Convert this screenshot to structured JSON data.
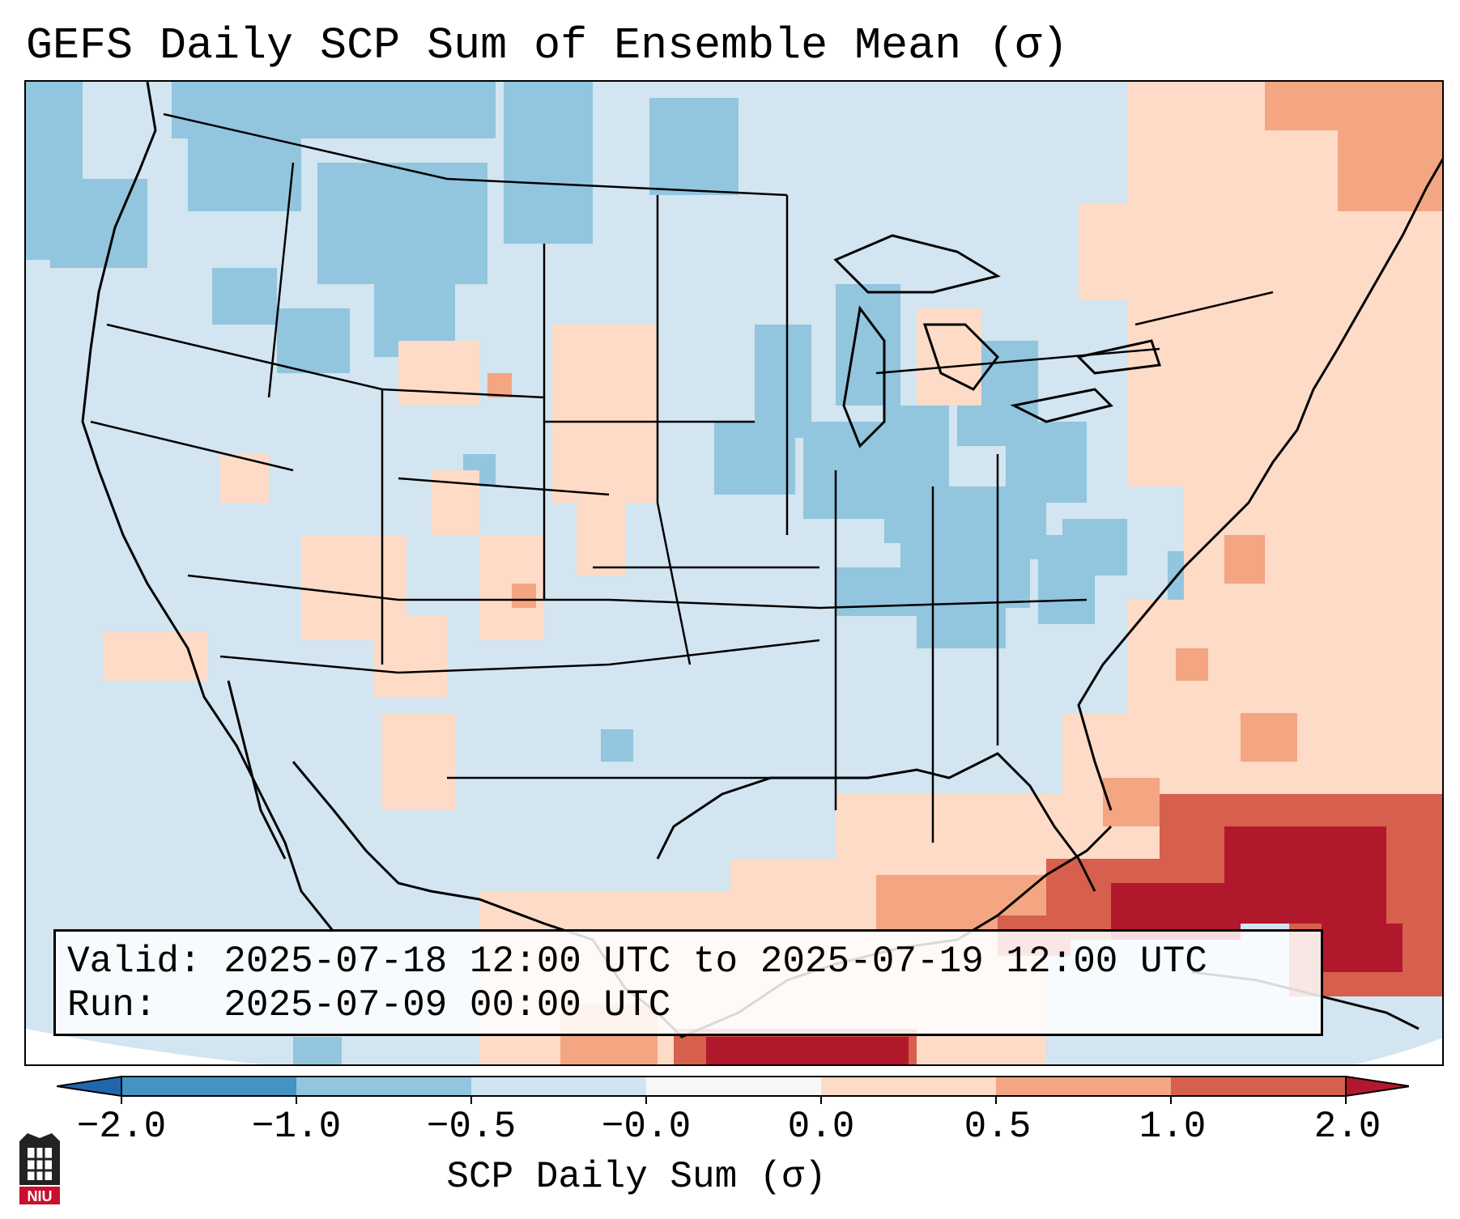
{
  "title": "GEFS Daily SCP Sum of Ensemble Mean (σ)",
  "info_box": {
    "valid_line": "Valid: 2025-07-18 12:00 UTC to 2025-07-19 12:00 UTC",
    "run_line": "Run:   2025-07-09 00:00 UTC"
  },
  "colorbar": {
    "label": "SCP Daily Sum (σ)",
    "ticks": [
      "−2.0",
      "−1.0",
      "−0.5",
      "−0.0",
      "0.0",
      "0.5",
      "1.0",
      "2.0"
    ],
    "colors": [
      "#4393c3",
      "#92c5de",
      "#d1e5f0",
      "#f7f7f7",
      "#fddbc7",
      "#f4a582",
      "#d6604d"
    ],
    "extend_low": "#2166ac",
    "extend_high": "#b2182b"
  },
  "logo": {
    "text": "NIU"
  }
}
